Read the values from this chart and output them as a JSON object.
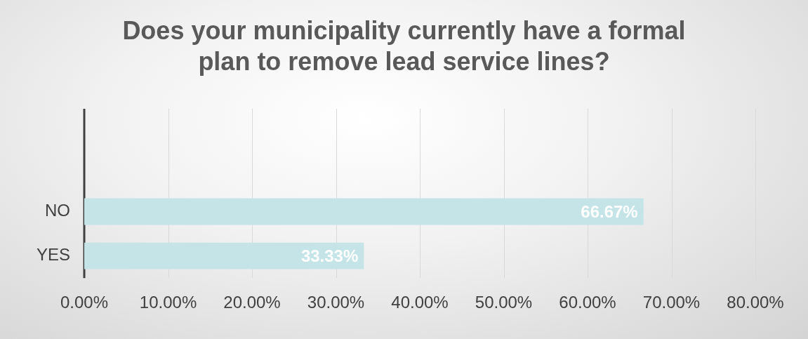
{
  "chart_data": {
    "type": "bar",
    "orientation": "horizontal",
    "title": "Does your municipality currently have a formal plan to remove lead service lines?",
    "categories": [
      "NO",
      "YES"
    ],
    "values": [
      66.67,
      33.33
    ],
    "value_labels": [
      "66.67%",
      "33.33%"
    ],
    "color": "#c5e4e7",
    "xlim": [
      0,
      80
    ],
    "xticks": [
      {
        "value": 0,
        "label": "0.00%"
      },
      {
        "value": 10,
        "label": "10.00%"
      },
      {
        "value": 20,
        "label": "20.00%"
      },
      {
        "value": 30,
        "label": "30.00%"
      },
      {
        "value": 40,
        "label": "40.00%"
      },
      {
        "value": 50,
        "label": "50.00%"
      },
      {
        "value": 60,
        "label": "60.00%"
      },
      {
        "value": 70,
        "label": "70.00%"
      },
      {
        "value": 80,
        "label": "80.00%"
      }
    ],
    "grid": "x"
  }
}
